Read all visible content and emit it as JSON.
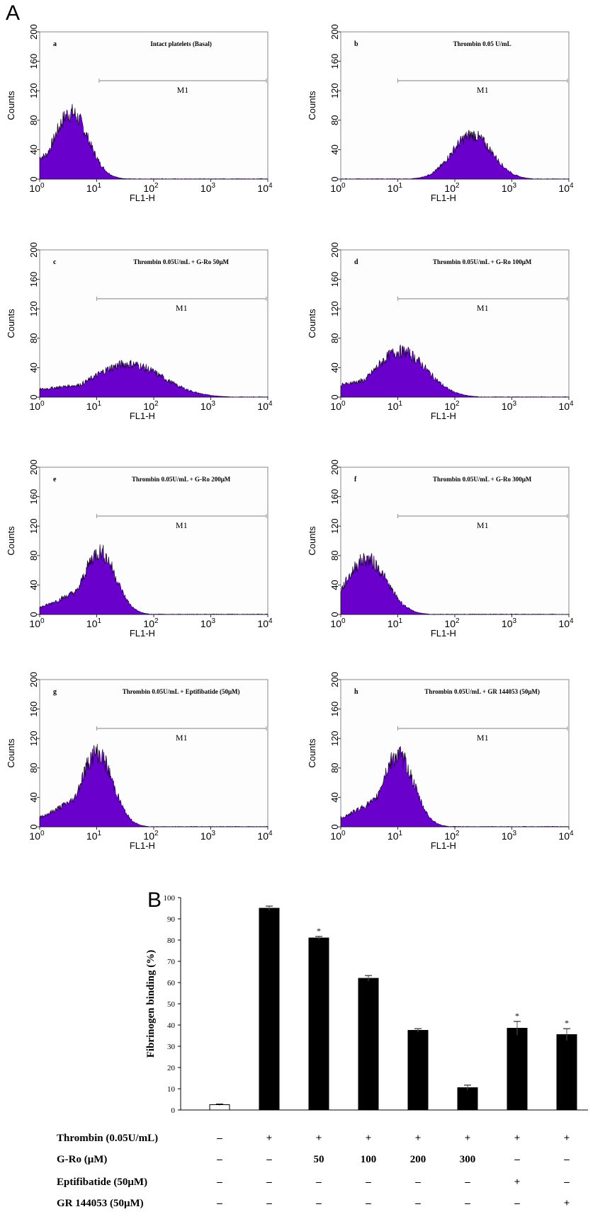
{
  "figure": {
    "panel_a_letter": "A",
    "panel_b_letter": "B",
    "hist_common": {
      "ylabel": "Counts",
      "xlabel": "FL1-H",
      "y_ticks": [
        "0",
        "40",
        "80",
        "120",
        "160",
        "200"
      ],
      "x_ticks": [
        {
          "base": "10",
          "exp": "0"
        },
        {
          "base": "10",
          "exp": "1"
        },
        {
          "base": "10",
          "exp": "2"
        },
        {
          "base": "10",
          "exp": "3"
        },
        {
          "base": "10",
          "exp": "4"
        }
      ],
      "marker_label": "M1",
      "fill_color": "#6a00cc"
    }
  },
  "chart_data": [
    {
      "type": "area",
      "id": "a",
      "letter": "a",
      "title": "Intact platelets (Basal)",
      "x_scale": "log",
      "xlim": [
        1,
        10000
      ],
      "ylim": [
        0,
        200
      ],
      "peak_log10": 0.55,
      "peak_counts": 90,
      "width_log10": 0.3,
      "marker_start": 11,
      "marker_end": 10000
    },
    {
      "type": "area",
      "id": "b",
      "letter": "b",
      "title": "Thrombin 0.05 U/mL",
      "x_scale": "log",
      "xlim": [
        1,
        10000
      ],
      "ylim": [
        0,
        200
      ],
      "peak_log10": 2.3,
      "peak_counts": 60,
      "width_log10": 0.35,
      "marker_start": 10,
      "marker_end": 10000
    },
    {
      "type": "area",
      "id": "c",
      "letter": "c",
      "title": "Thrombin 0.05U/mL + G-Ro 50μM",
      "x_scale": "log",
      "xlim": [
        1,
        10000
      ],
      "ylim": [
        0,
        200
      ],
      "peak_log10": 1.55,
      "peak_counts": 45,
      "width_log10": 0.6,
      "marker_start": 10,
      "marker_end": 10000
    },
    {
      "type": "area",
      "id": "d",
      "letter": "d",
      "title": "Thrombin 0.05U/mL + G-Ro 100μM",
      "x_scale": "log",
      "xlim": [
        1,
        10000
      ],
      "ylim": [
        0,
        200
      ],
      "peak_log10": 1.05,
      "peak_counts": 62,
      "width_log10": 0.45,
      "marker_start": 10,
      "marker_end": 10000
    },
    {
      "type": "area",
      "id": "e",
      "letter": "e",
      "title": "Thrombin 0.05U/mL + G-Ro 200μM",
      "x_scale": "log",
      "xlim": [
        1,
        10000
      ],
      "ylim": [
        0,
        200
      ],
      "peak_log10": 1.05,
      "peak_counts": 85,
      "width_log10": 0.28,
      "marker_start": 10,
      "marker_end": 10000
    },
    {
      "type": "area",
      "id": "f",
      "letter": "f",
      "title": "Thrombin 0.05U/mL + G-Ro 300μM",
      "x_scale": "log",
      "xlim": [
        1,
        10000
      ],
      "ylim": [
        0,
        200
      ],
      "peak_log10": 0.45,
      "peak_counts": 75,
      "width_log10": 0.35,
      "marker_start": 10,
      "marker_end": 10000
    },
    {
      "type": "area",
      "id": "g",
      "letter": "g",
      "title": "Thrombin 0.05U/mL + Eptifibatide (50μM)",
      "x_scale": "log",
      "xlim": [
        1,
        10000
      ],
      "ylim": [
        0,
        200
      ],
      "peak_log10": 1.0,
      "peak_counts": 100,
      "width_log10": 0.28,
      "marker_start": 10,
      "marker_end": 10000
    },
    {
      "type": "area",
      "id": "h",
      "letter": "h",
      "title": "Thrombin 0.05U/mL + GR 144053 (50μM)",
      "x_scale": "log",
      "xlim": [
        1,
        10000
      ],
      "ylim": [
        0,
        200
      ],
      "peak_log10": 1.0,
      "peak_counts": 97,
      "width_log10": 0.28,
      "marker_start": 10,
      "marker_end": 10000
    },
    {
      "type": "bar",
      "id": "B",
      "ylabel": "Fibrinogen binding (%)",
      "ylim": [
        0,
        100
      ],
      "y_ticks": [
        "0",
        "10",
        "20",
        "30",
        "40",
        "50",
        "60",
        "70",
        "80",
        "90",
        "100"
      ],
      "values": [
        2.5,
        95,
        81,
        62,
        37.5,
        10.5,
        38.5,
        35.5
      ],
      "errors": [
        0.3,
        1.0,
        0.7,
        1.3,
        0.8,
        1.2,
        3.2,
        2.8
      ],
      "significant": [
        false,
        false,
        true,
        false,
        false,
        false,
        true,
        true
      ],
      "significance_mark": "*",
      "bar_colors": [
        "#ffffff",
        "#000000",
        "#000000",
        "#000000",
        "#000000",
        "#000000",
        "#000000",
        "#000000"
      ],
      "conditions": [
        {
          "label": "Thrombin (0.05U/mL)",
          "cells": [
            "–",
            "+",
            "+",
            "+",
            "+",
            "+",
            "+",
            "+"
          ]
        },
        {
          "label": "G-Ro (μM)",
          "cells": [
            "–",
            "–",
            "50",
            "100",
            "200",
            "300",
            "–",
            "–"
          ]
        },
        {
          "label": "Eptifibatide (50μM)",
          "cells": [
            "–",
            "–",
            "–",
            "–",
            "–",
            "–",
            "+",
            "–"
          ]
        },
        {
          "label": "GR 144053 (50μM)",
          "cells": [
            "–",
            "–",
            "–",
            "–",
            "–",
            "–",
            "–",
            "+"
          ]
        }
      ]
    }
  ]
}
